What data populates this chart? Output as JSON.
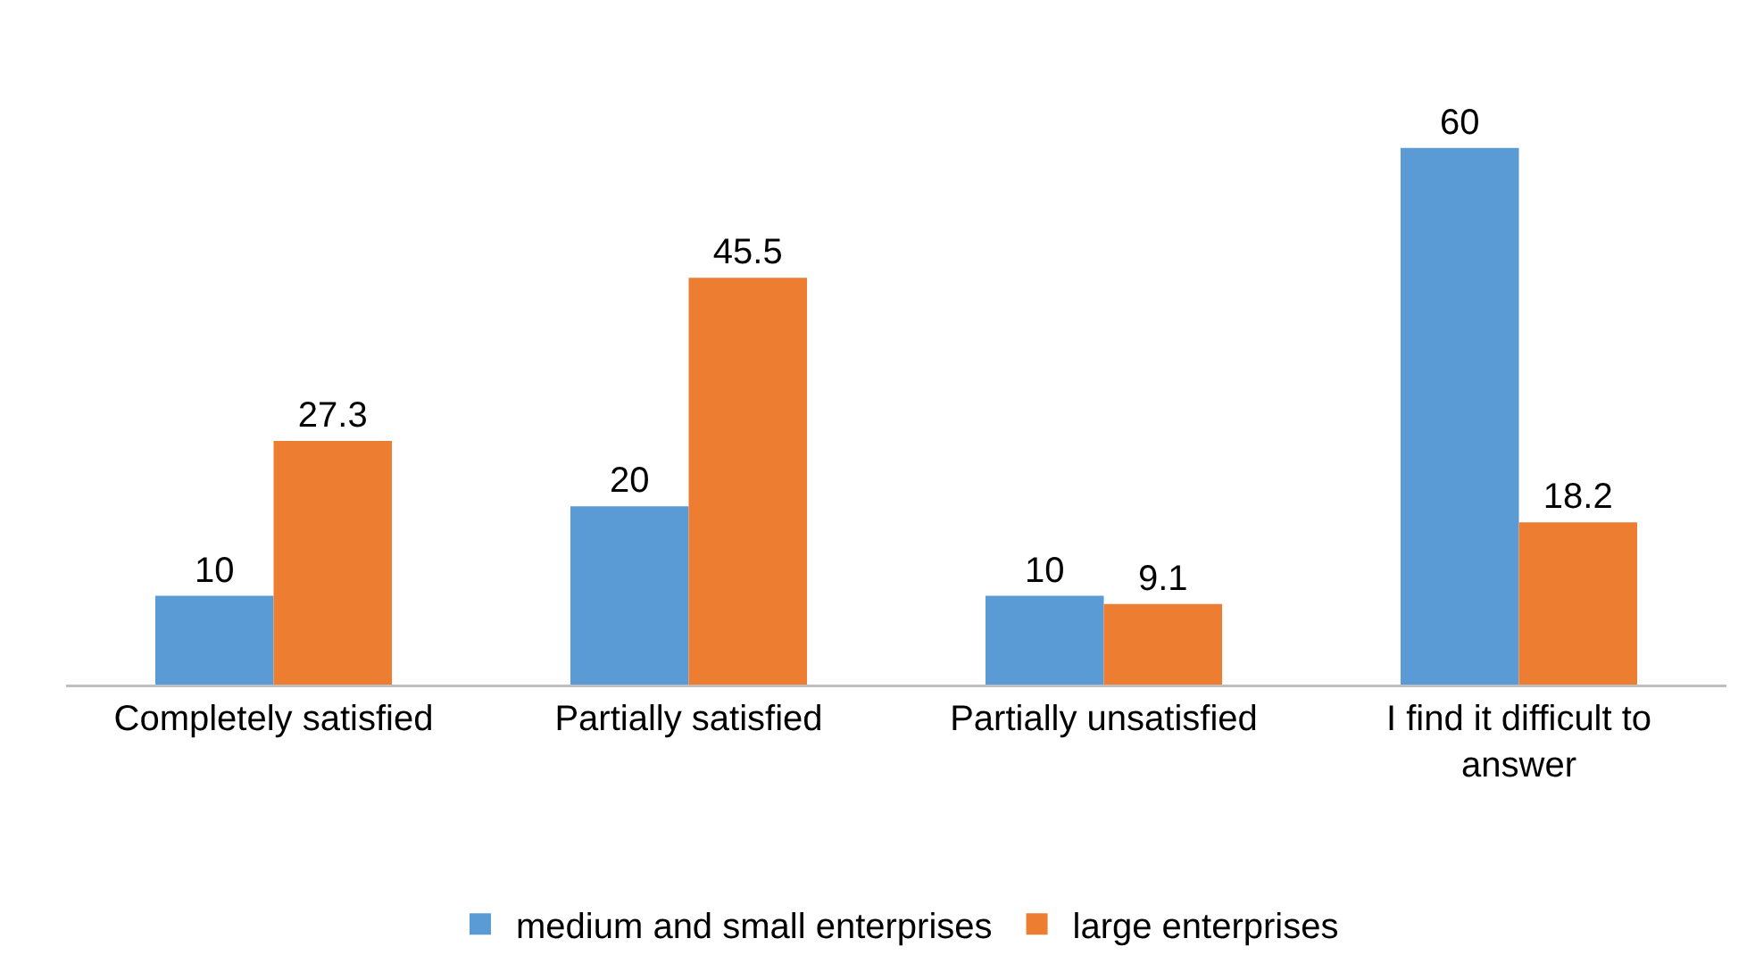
{
  "chart_data": {
    "type": "bar",
    "categories": [
      "Completely satisfied",
      "Partially satisfied",
      "Partially unsatisfied",
      "I find it difficult to answer"
    ],
    "series": [
      {
        "name": "medium and small enterprises",
        "color": "#5b9bd5",
        "values": [
          10,
          20,
          10,
          60
        ]
      },
      {
        "name": "large enterprises",
        "color": "#ed7d31",
        "values": [
          27.3,
          45.5,
          9.1,
          18.2
        ]
      }
    ],
    "tick_labels": "x",
    "data_labels": true,
    "legend": "bottom"
  }
}
